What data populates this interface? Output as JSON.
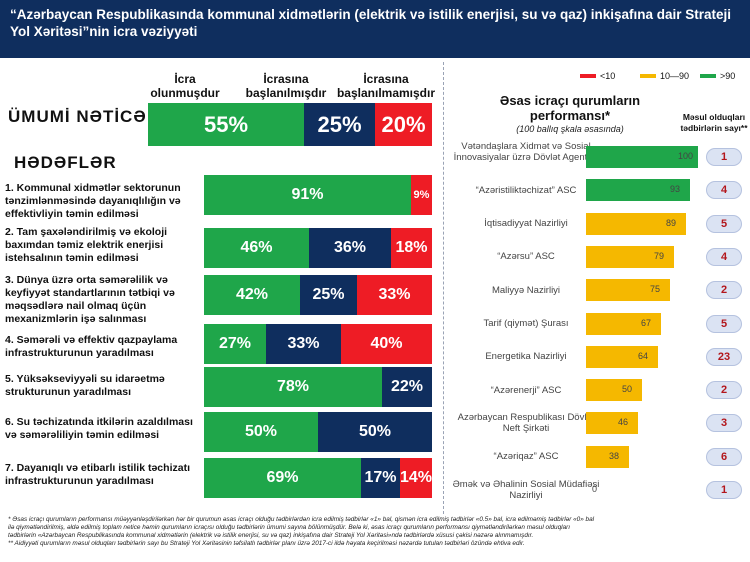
{
  "header": {
    "title_line1": "“Azərbaycan Respublikasında kommunal xidmətlərin (elektrik və istilik enerjisi, su və qaz) inkişafına dair Strateji",
    "title_line2": "Yol Xəritəsi”nin icra vəziyyəti"
  },
  "left": {
    "col_headers": {
      "done": [
        "İcra",
        "olunmuşdur"
      ],
      "started": [
        "İcrasına",
        "başlanılmışdır"
      ],
      "not_started": [
        "İcrasına",
        "başlanılmamışdır"
      ]
    },
    "overall_label": "ÜMUMİ NƏTİCƏ",
    "goals_heading": "HƏDƏFLƏR"
  },
  "right": {
    "title_line1": "Əsas icraçı qurumların",
    "title_line2": "performansı*",
    "subtitle": "(100 ballıq şkala əsasında)",
    "measures_header": [
      "Məsul olduqları",
      "tədbirlərin sayı**"
    ],
    "legend": [
      {
        "label": "<10",
        "color": "#ee1c25"
      },
      {
        "label": "10—90",
        "color": "#f5b800"
      },
      {
        "label": ">90",
        "color": "#1fa64a"
      }
    ]
  },
  "colors": {
    "done": "#1fa64a",
    "started": "#0f2e5e",
    "not_started": "#ee1c25",
    "mid": "#f5b800",
    "pill_text": "#b3161b"
  },
  "chart_data": [
    {
      "type": "bar",
      "stacked": true,
      "orientation": "horizontal",
      "series_names": [
        "İcra olunmuşdur",
        "İcrasına başlanılmışdır",
        "İcrasına başlanılmamışdır"
      ],
      "rows": [
        {
          "label": "ÜMUMİ NƏTİCƏ",
          "values": [
            55,
            25,
            20
          ],
          "labels": [
            "55%",
            "25%",
            "20%"
          ]
        },
        {
          "label": "1. Kommunal xidmətlər sektorunun tənzimlənməsində dayanıqlılığın və effektivliyin təmin edilməsi",
          "values": [
            91,
            0,
            9
          ],
          "labels": [
            "91%",
            "",
            "9%"
          ]
        },
        {
          "label": "2. Tam şaxələndirilmiş və ekoloji baxımdan təmiz elektrik enerjisi istehsalının təmin edilməsi",
          "values": [
            46,
            36,
            18
          ],
          "labels": [
            "46%",
            "36%",
            "18%"
          ]
        },
        {
          "label": "3. Dünya üzrə orta səmərəlilik və keyfiyyət standartlarının tətbiqi və məqsədlərə nail olmaq üçün mexanizmlərin işə salınması",
          "values": [
            42,
            25,
            33
          ],
          "labels": [
            "42%",
            "25%",
            "33%"
          ]
        },
        {
          "label": "4. Səmərəli və effektiv qazpaylama infrastrukturunun yaradılması",
          "values": [
            27,
            33,
            40
          ],
          "labels": [
            "27%",
            "33%",
            "40%"
          ]
        },
        {
          "label": "5. Yüksəkseviyyəli su idarəetmə strukturunun yaradılması",
          "values": [
            78,
            22,
            0
          ],
          "labels": [
            "78%",
            "22%",
            ""
          ]
        },
        {
          "label": "6. Su təchizatında itkilərin azaldılması və səmərəliliyin təmin edilməsi",
          "values": [
            50,
            50,
            0
          ],
          "labels": [
            "50%",
            "50%",
            ""
          ]
        },
        {
          "label": "7. Dayanıqlı və etibarlı istilik təchizatı infrastrukturunun yaradılması",
          "values": [
            69,
            17,
            14
          ],
          "labels": [
            "69%",
            "17%",
            "14%"
          ]
        }
      ],
      "xlim": [
        0,
        100
      ]
    },
    {
      "type": "bar",
      "orientation": "horizontal",
      "title": "Əsas icraçı qurumların performansı*",
      "subtitle": "(100 ballıq şkala əsasında)",
      "xlim": [
        0,
        100
      ],
      "rows": [
        {
          "label": "Vətəndaşlara Xidmət və Sosial İnnovasiyalar üzrə Dövlət Agentliyi",
          "value": 100,
          "measures": 1
        },
        {
          "label": "“Azəristiliktəchizat” ASC",
          "value": 93,
          "measures": 4
        },
        {
          "label": "İqtisadiyyat Nazirliyi",
          "value": 89,
          "measures": 5
        },
        {
          "label": "“Azərsu” ASC",
          "value": 79,
          "measures": 4
        },
        {
          "label": "Maliyyə Nazirliyi",
          "value": 75,
          "measures": 2
        },
        {
          "label": "Tarif (qiymət) Şurası",
          "value": 67,
          "measures": 5
        },
        {
          "label": "Energetika Nazirliyi",
          "value": 64,
          "measures": 23
        },
        {
          "label": "“Azərenerji” ASC",
          "value": 50,
          "measures": 2
        },
        {
          "label": "Azərbaycan Respublikası Dövlət Neft Şirkəti",
          "value": 46,
          "measures": 3
        },
        {
          "label": "“Azəriqaz” ASC",
          "value": 38,
          "measures": 6
        },
        {
          "label": "Əmək və Əhalinin Sosial Müdafiəsi Nazirliyi",
          "value": 0,
          "measures": 1
        }
      ]
    }
  ],
  "footnotes": [
    "*  Əsas icraçı qurumların performansı müəyyənləşdirilərkən hər bir qurumun əsas icraçı olduğu tədbirlərdən icra edilmiş tədbirlər «1» bal, qismən icra edilmiş tədbirlər «0.5» bal, icra edilməmiş tədbirlər «0» bal",
    "ilə qiymətləndirilmiş, əldə edilmiş toplam netice həmin qurumların icraçısı olduğu tədbirlərin ümumi sayına bölünmüşdür. Belə ki, əsas icraçı qurumların performansı qiymətləndirilərkən məsul olduqları",
    "tədbirlərin «Azərbaycan Respublikasında kommunal xidmətlərin (elektrik və istilik enerjisi, su və qaz) inkişafına dair Strateji Yol Xəritəsi»ndə tədbirlərdə xüsusi çəkisi nəzərə alınmamışdır.",
    "** Aidiyyəti qurumların məsul olduqları tədbirlərin sayı bu Strateji Yol Xəritəsinin təfsilatlı tədbirlər planı üzrə 2017-ci ildə həyata keçirilməsi nəzərdə tutulan tədbirləri özündə ehtiva edir."
  ]
}
